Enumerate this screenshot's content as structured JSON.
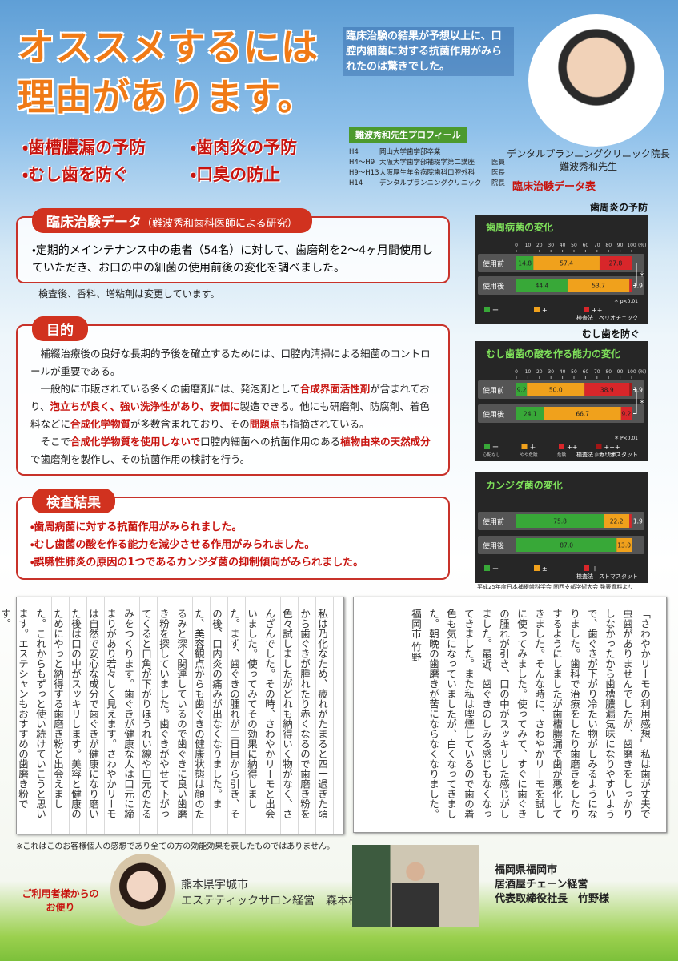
{
  "header": {
    "headline": [
      "オススメするには",
      "理由があります。"
    ],
    "intro": "臨床治験の結果が予想以上に、口腔内細菌に対する抗菌作用がみられたのは驚きでした。",
    "benefits": [
      "・歯槽膿漏の予防",
      "・歯肉炎の予防",
      "・むし歯を防ぐ",
      "・口臭の防止"
    ],
    "doctor_caption": [
      "デンタルプランニングクリニック院長",
      "難波秀和先生"
    ],
    "profile_title": "難波秀和先生プロフィール",
    "profile": [
      [
        "H4",
        "岡山大学歯学部卒業",
        ""
      ],
      [
        "H4〜H9",
        "大阪大学歯学部補綴学第二講座",
        "医員"
      ],
      [
        "H9〜H13",
        "大阪厚生年金病院歯科口腔外科",
        "医長"
      ],
      [
        "H14",
        "デンタルプランニングクリニック",
        "院長"
      ]
    ]
  },
  "sections": [
    {
      "title": "臨床治験データ",
      "subtitle": "（難波秀和歯科医師による研究）",
      "body": "・定期的メインテナンス中の患者（54名）に対して、歯磨剤を2〜4ヶ月間使用していただき、お口の中の細菌の使用前後の変化を調べました。",
      "note": "検査後、香料、増粘剤は変更しています。"
    },
    {
      "title": "目的",
      "paragraphs": [
        [
          "補綴治療後の良好な長期的予後を確立するためには、口腔内清掃による細菌のコントロールが重要である。"
        ],
        [
          "一般的に市販されている多くの歯磨剤には、発泡剤として",
          "合成界面活性剤",
          "が含まれており、",
          "泡立ちが良く、強い洗浄性があり、安価に",
          "製造できる。他にも研磨剤、防腐剤、着色料などに",
          "合成化学物質",
          "が多数含まれており、その",
          "問題点",
          "も指摘されている。"
        ],
        [
          "そこで",
          "合成化学物質を使用しないで",
          "口腔内細菌への抗菌作用のある",
          "植物由来の天然成分",
          "で歯磨剤を製作し、その抗菌作用の検討を行う。"
        ]
      ]
    },
    {
      "title": "検査結果",
      "items": [
        "・歯周病菌に対する抗菌作用がみられました。",
        "・むし歯菌の酸を作る能力を減少させる作用がみられました。",
        "・誤嚥性肺炎の原因の1つであるカンジダ菌の抑制傾向がみられました。"
      ]
    }
  ],
  "charts_title": "臨床治験データ表",
  "charts": [
    {
      "type": "bar",
      "heading": "歯周炎の予防",
      "title": "歯周病菌の変化",
      "categories": [
        "使用前",
        "使用後"
      ],
      "xlim": [
        0,
        100
      ],
      "xticks": [
        0,
        10,
        20,
        30,
        40,
        50,
        60,
        70,
        80,
        90,
        100
      ],
      "x_unit": "(%)",
      "series": [
        {
          "name": "ー",
          "color": "#38a838",
          "values": [
            14.8,
            44.4
          ]
        },
        {
          "name": "+",
          "color": "#f0a11c",
          "values": [
            57.4,
            53.7
          ]
        },
        {
          "name": "++",
          "color": "#d8262a",
          "values": [
            27.8,
            1.9
          ]
        }
      ],
      "significance": "＊",
      "footnotes": [
        "＊ p<0.01",
        "検査法：ペリオチェック"
      ]
    },
    {
      "type": "bar",
      "heading": "むし歯を防ぐ",
      "title": "むし歯菌の酸を作る能力の変化",
      "categories": [
        "使用前",
        "使用後"
      ],
      "xlim": [
        0,
        100
      ],
      "xticks": [
        0,
        10,
        20,
        30,
        40,
        50,
        60,
        70,
        80,
        90,
        100
      ],
      "x_unit": "(%)",
      "series": [
        {
          "name": "ー",
          "note": "心配なし",
          "color": "#38a838",
          "values": [
            9.2,
            24.1
          ]
        },
        {
          "name": "＋",
          "note": "やや危険",
          "color": "#f0a11c",
          "values": [
            50,
            66.7
          ],
          "value_labels": [
            "50.0",
            "66.7"
          ]
        },
        {
          "name": "++",
          "note": "危険",
          "color": "#d8262a",
          "values": [
            38.9,
            9.2
          ]
        },
        {
          "name": "+++",
          "note": "非常に危険",
          "color": "#a31616",
          "values": [
            1.9,
            null
          ]
        }
      ],
      "significance": "＊",
      "footnotes": [
        "＊ P<0.01",
        "検査法：カリオスタット"
      ]
    },
    {
      "type": "bar",
      "title": "カンジダ菌の変化",
      "categories": [
        "使用前",
        "使用後"
      ],
      "xlim": [
        0,
        100
      ],
      "series": [
        {
          "name": "ー",
          "color": "#38a838",
          "values": [
            75.8,
            87
          ],
          "value_labels": [
            "75.8",
            "87.0"
          ]
        },
        {
          "name": "±",
          "color": "#f0a11c",
          "values": [
            22.2,
            13
          ],
          "value_labels": [
            "22.2",
            "13.0"
          ]
        },
        {
          "name": "＋",
          "color": "#d8262a",
          "values": [
            1.9,
            null
          ]
        }
      ],
      "footnotes": [
        "検査法：ストマスタット"
      ]
    }
  ],
  "source": "平成25年度日本補綴歯科学会 関西支部学術大会 発表資料より",
  "letters": [
    "私は乃化なため、疲れがたまると四十過ぎた頃から歯ぐきが腫れたり赤くなるので歯磨き粉を色々試しましたがどれも納得いく物がなく、さんざんでした。その時、さわやかリーモと出会いました。使ってみてその効果に納得しました。まず、歯ぐきの腫れが三日目から引き、その後、口内炎の痛みが出なくなりました。また、美容観点からも歯ぐきの健康状態は顔のたるみと深く関連しているので歯ぐきに良い歯磨き粉を探していました。歯ぐきがやせて下がってくると口角が下がりほうれい線や口元のたるみをつくります。歯ぐきが健康な人は口元に締まりがあり若々しく見えます。さわやかリーモは自然で安心な成分で歯ぐきが健康になり磨いた後は口の中がスッキリします。美容と健康のためにやっと納得する歯磨き粉と出会えました。これからもずっと使い続けていこうと思います。エステシャンもおすすめの歯磨き粉です。",
    "「さわやかリーモの利用感想」私は歯が丈夫で虫歯がありませんでしたが、歯磨きをしっかりしなかったから歯槽膿漏気味になりやすいようで、歯ぐきが下がり冷たい物がしみるようになりました。歯科で治療をしたり歯磨きをしたりするようにしましたが歯槽膿漏で歯が悪化してきました。そんな時に、さわやかリーモを試しに使ってみました。使ってみて、すぐに歯ぐきの腫れが引き、口の中がスッキリした感じがしました。最近、歯ぐきのしみる感じもなくなってきました。また私は喫煙しているので歯の着色も気になっていましたが、白くなってきました。朝晩の歯磨きが苦にならなくなりました。福岡市 竹野"
  ],
  "footer": {
    "disclaimer": "※これはこのお客様個人の感想であり全ての方の効能効果を表したものではありません。",
    "voice_label": [
      "ご利用者様からの",
      "お便り"
    ],
    "customer1": [
      "熊本県宇城市",
      "エステティックサロン経営　森本様"
    ],
    "customer2": [
      "福岡県福岡市",
      "居酒屋チェーン経営",
      "代表取締役社長　竹野様"
    ]
  }
}
